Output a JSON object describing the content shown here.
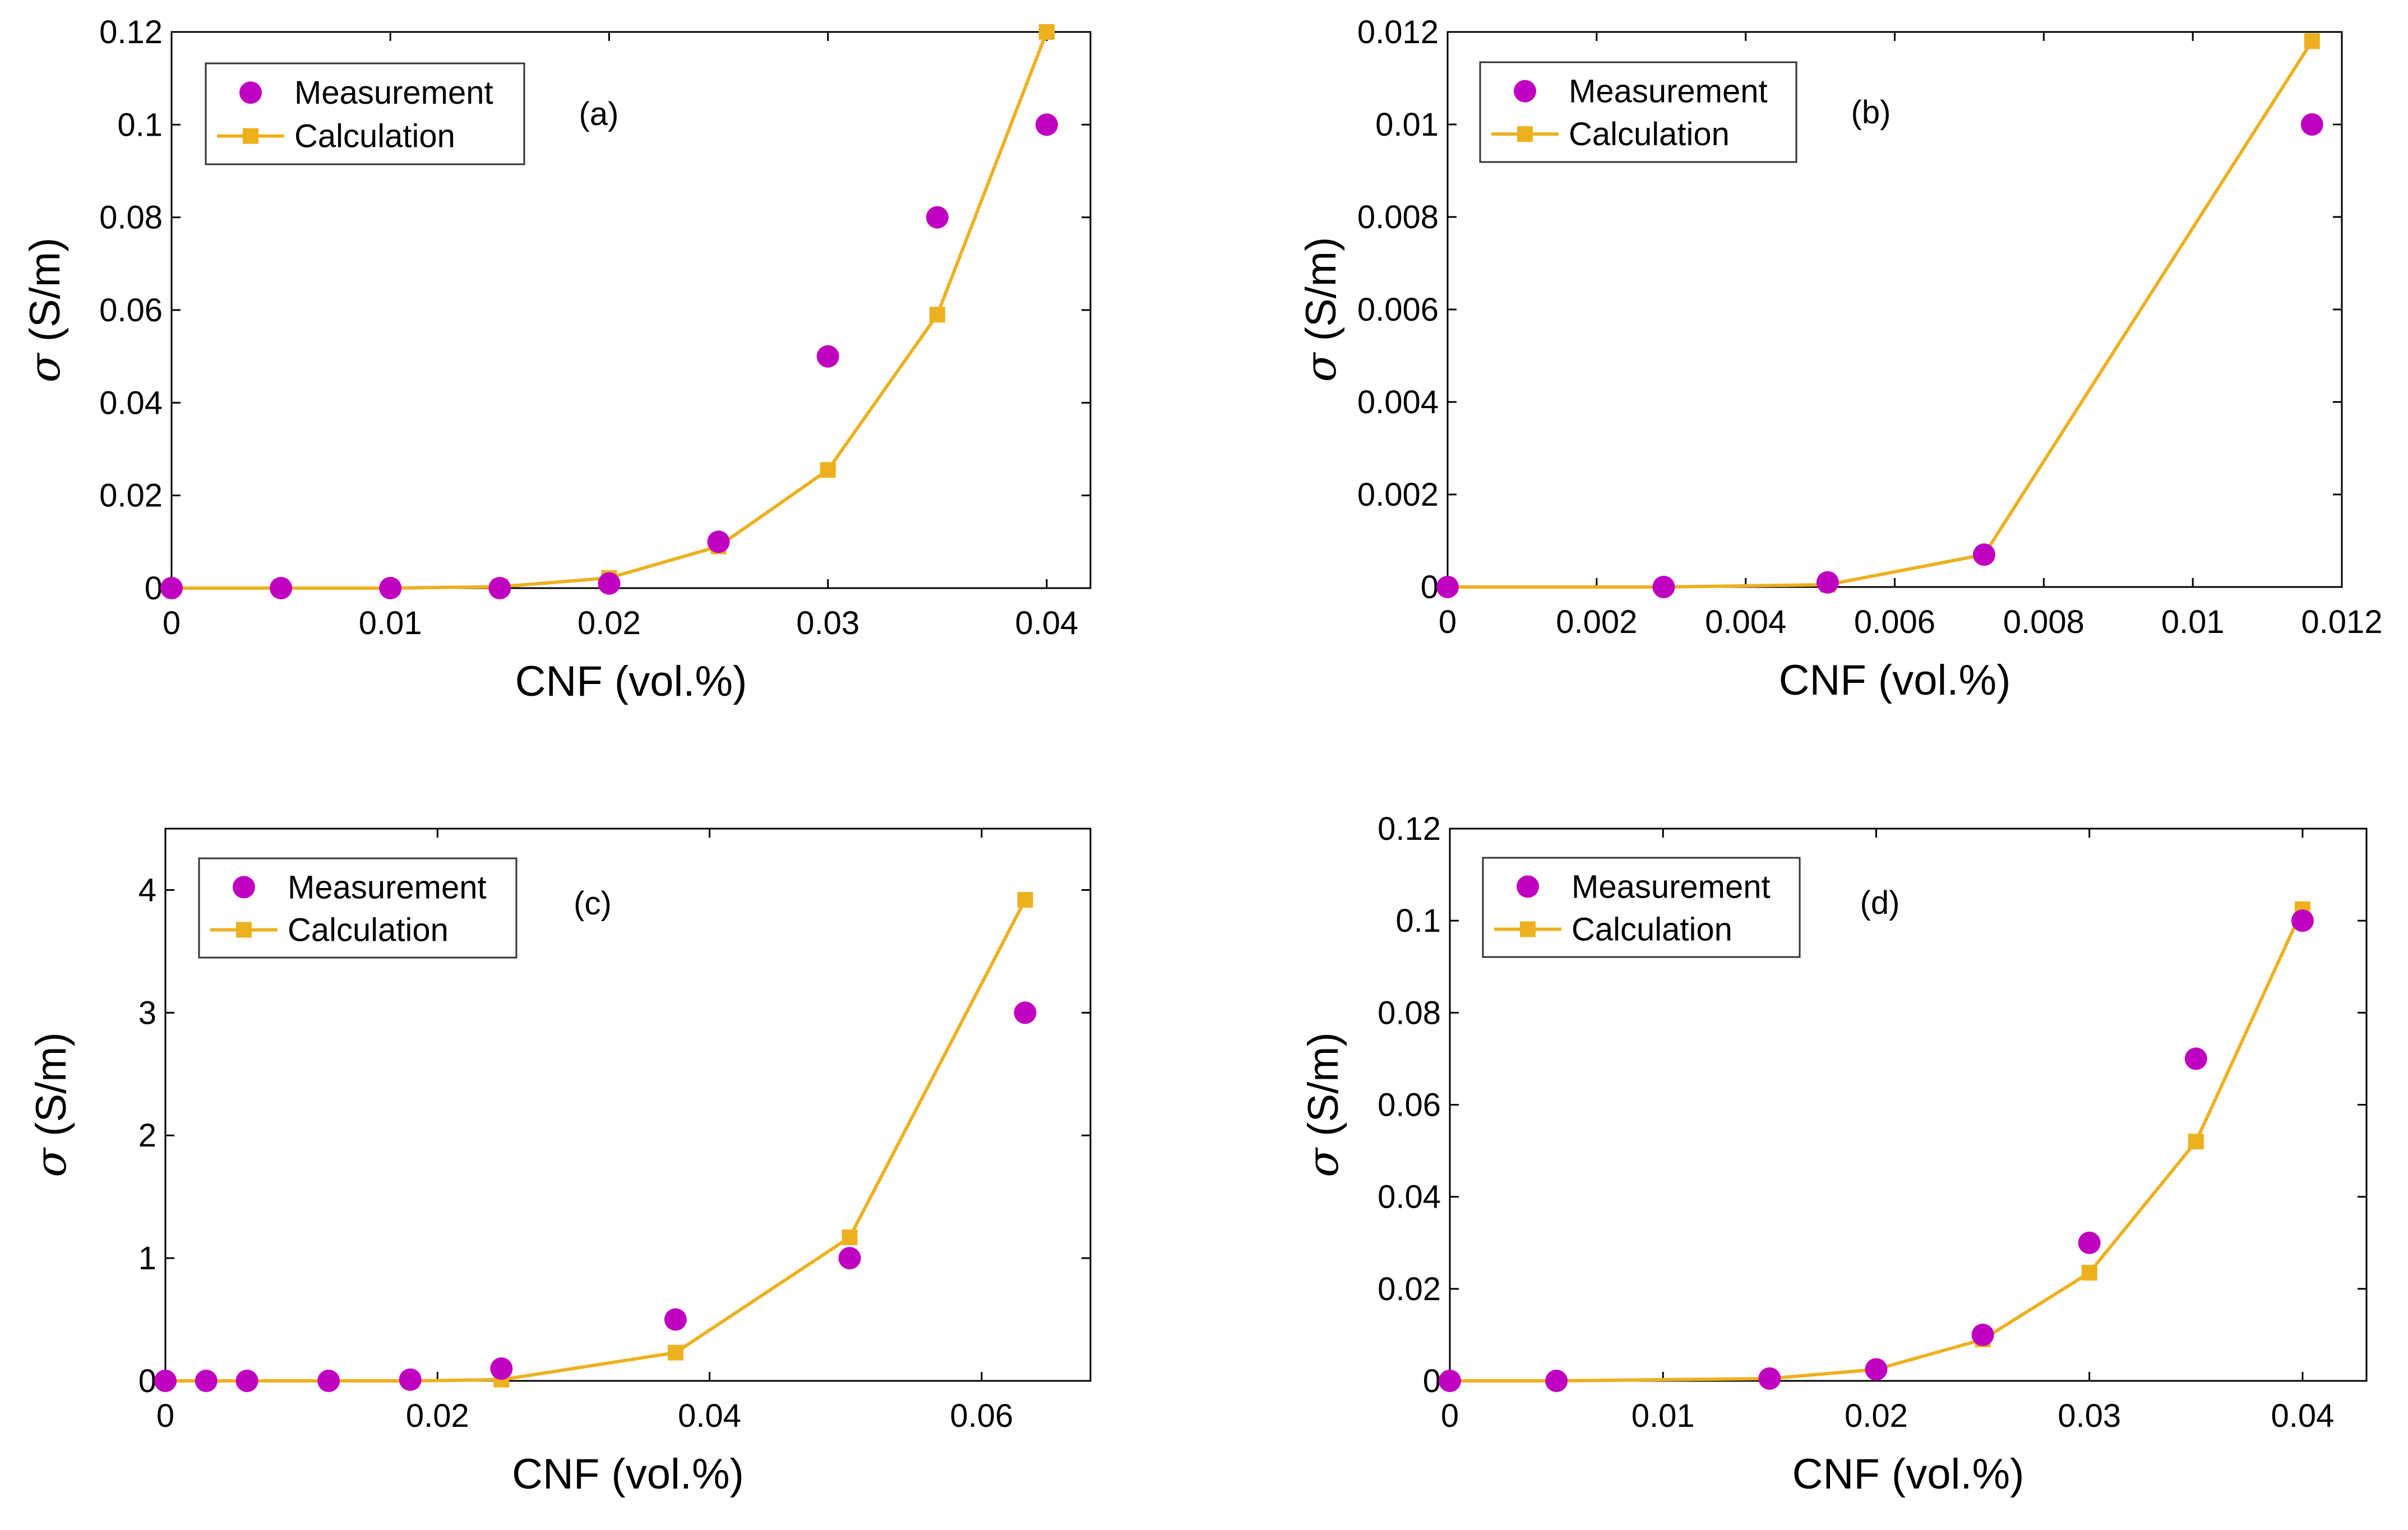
{
  "colors": {
    "measurement": "#C000C0",
    "calculation": "#EDB120",
    "axis": "#000000",
    "legend_border": "#333333"
  },
  "chart_data": [
    {
      "type": "scatter",
      "panel_label": "(a)",
      "xlabel": "CNF (vol.%)",
      "ylabel_symbol": "σ",
      "ylabel_unit": " (S/m)",
      "xlim": [
        0,
        0.042
      ],
      "ylim": [
        0,
        0.12
      ],
      "xticks": [
        0,
        0.01,
        0.02,
        0.03,
        0.04
      ],
      "xtick_labels": [
        "0",
        "0.01",
        "0.02",
        "0.03",
        "0.04"
      ],
      "yticks": [
        0,
        0.02,
        0.04,
        0.06,
        0.08,
        0.1,
        0.12
      ],
      "ytick_labels": [
        "0",
        "0.02",
        "0.04",
        "0.06",
        "0.08",
        "0.1",
        "0.12"
      ],
      "legend": {
        "measurement": "Measurement",
        "calculation": "Calculation"
      },
      "series": [
        {
          "name": "Measurement",
          "kind": "marker",
          "x": [
            0,
            0.005,
            0.01,
            0.015,
            0.02,
            0.025,
            0.03,
            0.035,
            0.04
          ],
          "y": [
            0,
            0,
            0,
            0,
            0.001,
            0.01,
            0.05,
            0.08,
            0.1
          ]
        },
        {
          "name": "Calculation",
          "kind": "line",
          "x": [
            0,
            0.005,
            0.01,
            0.015,
            0.02,
            0.025,
            0.03,
            0.035,
            0.04
          ],
          "y": [
            0,
            0,
            0,
            0.0003,
            0.0022,
            0.009,
            0.0255,
            0.059,
            0.12
          ]
        }
      ]
    },
    {
      "type": "scatter",
      "panel_label": "(b)",
      "xlabel": "CNF (vol.%)",
      "ylabel_symbol": "σ",
      "ylabel_unit": " (S/m)",
      "xlim": [
        0,
        0.012
      ],
      "ylim": [
        0,
        0.012
      ],
      "xticks": [
        0,
        0.002,
        0.004,
        0.006,
        0.008,
        0.01,
        0.012
      ],
      "xtick_labels": [
        "0",
        "0.002",
        "0.004",
        "0.006",
        "0.008",
        "0.01",
        "0.012"
      ],
      "yticks": [
        0,
        0.002,
        0.004,
        0.006,
        0.008,
        0.01,
        0.012
      ],
      "ytick_labels": [
        "0",
        "0.002",
        "0.004",
        "0.006",
        "0.008",
        "0.01",
        "0.012"
      ],
      "legend": {
        "measurement": "Measurement",
        "calculation": "Calculation"
      },
      "series": [
        {
          "name": "Measurement",
          "kind": "marker",
          "x": [
            0,
            0.0029,
            0.0051,
            0.0072,
            0.0116
          ],
          "y": [
            0,
            0,
            0.0001,
            0.0007,
            0.01
          ]
        },
        {
          "name": "Calculation",
          "kind": "line",
          "x": [
            0,
            0.0029,
            0.0051,
            0.0072,
            0.0116
          ],
          "y": [
            0,
            0,
            5e-05,
            0.0007,
            0.0118
          ]
        }
      ]
    },
    {
      "type": "scatter",
      "panel_label": "(c)",
      "xlabel": "CNF (vol.%)",
      "ylabel_symbol": "σ",
      "ylabel_unit": " (S/m)",
      "xlim": [
        0,
        0.068
      ],
      "ylim": [
        0,
        4.5
      ],
      "xticks": [
        0,
        0.02,
        0.04,
        0.06
      ],
      "xtick_labels": [
        "0",
        "0.02",
        "0.04",
        "0.06"
      ],
      "yticks": [
        0,
        1,
        2,
        3,
        4
      ],
      "ytick_labels": [
        "0",
        "1",
        "2",
        "3",
        "4"
      ],
      "legend": {
        "measurement": "Measurement",
        "calculation": "Calculation"
      },
      "series": [
        {
          "name": "Measurement",
          "kind": "marker",
          "x": [
            0,
            0.003,
            0.006,
            0.012,
            0.018,
            0.0247,
            0.0375,
            0.0503,
            0.0632
          ],
          "y": [
            0,
            0,
            0,
            0,
            0.01,
            0.1,
            0.5,
            1,
            3
          ]
        },
        {
          "name": "Calculation",
          "kind": "line",
          "x": [
            0,
            0.003,
            0.006,
            0.012,
            0.018,
            0.0247,
            0.0375,
            0.0503,
            0.0632
          ],
          "y": [
            0,
            0,
            0,
            0,
            0,
            0.01,
            0.23,
            1.17,
            3.92
          ]
        }
      ]
    },
    {
      "type": "scatter",
      "panel_label": "(d)",
      "xlabel": "CNF (vol.%)",
      "ylabel_symbol": "σ",
      "ylabel_unit": " (S/m)",
      "xlim": [
        0,
        0.043
      ],
      "ylim": [
        0,
        0.12
      ],
      "xticks": [
        0,
        0.01,
        0.02,
        0.03,
        0.04
      ],
      "xtick_labels": [
        "0",
        "0.01",
        "0.02",
        "0.03",
        "0.04"
      ],
      "yticks": [
        0,
        0.02,
        0.04,
        0.06,
        0.08,
        0.1,
        0.12
      ],
      "ytick_labels": [
        "0",
        "0.02",
        "0.04",
        "0.06",
        "0.08",
        "0.1",
        "0.12"
      ],
      "legend": {
        "measurement": "Measurement",
        "calculation": "Calculation"
      },
      "series": [
        {
          "name": "Measurement",
          "kind": "marker",
          "x": [
            0,
            0.005,
            0.015,
            0.02,
            0.025,
            0.03,
            0.035,
            0.04
          ],
          "y": [
            0,
            0,
            0.0005,
            0.0025,
            0.01,
            0.03,
            0.07,
            0.1
          ]
        },
        {
          "name": "Calculation",
          "kind": "line",
          "x": [
            0,
            0.005,
            0.015,
            0.02,
            0.025,
            0.03,
            0.035,
            0.04
          ],
          "y": [
            0,
            0,
            0.0005,
            0.0025,
            0.009,
            0.0235,
            0.052,
            0.1025
          ]
        }
      ]
    }
  ]
}
